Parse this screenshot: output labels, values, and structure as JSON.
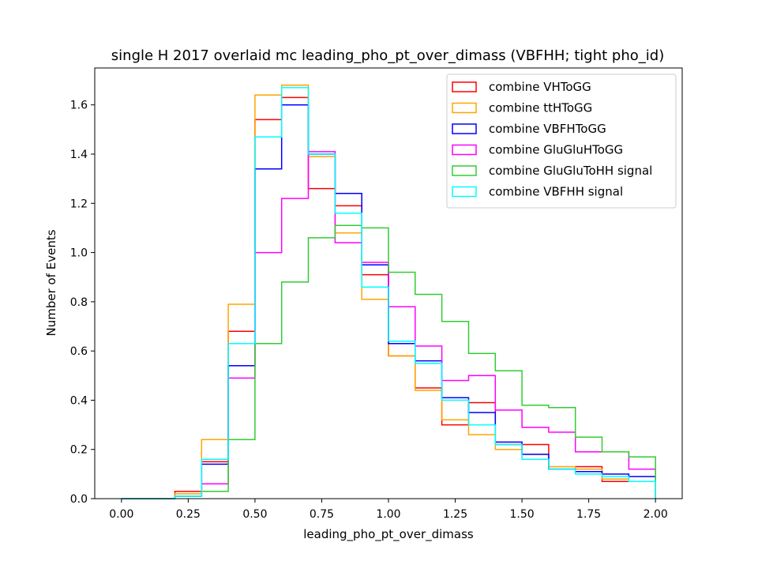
{
  "chart_data": {
    "type": "line",
    "step": "histogram",
    "title": "single H 2017 overlaid mc leading_pho_pt_over_dimass (VBFHH; tight pho_id)",
    "xlabel": "leading_pho_pt_over_dimass",
    "ylabel": "Number of Events",
    "xlim": [
      -0.1,
      2.1
    ],
    "ylim": [
      0,
      1.75
    ],
    "xticks": [
      0.0,
      0.25,
      0.5,
      0.75,
      1.0,
      1.25,
      1.5,
      1.75,
      2.0
    ],
    "xtick_labels": [
      "0.00",
      "0.25",
      "0.50",
      "0.75",
      "1.00",
      "1.25",
      "1.50",
      "1.75",
      "2.00"
    ],
    "yticks": [
      0.0,
      0.2,
      0.4,
      0.6,
      0.8,
      1.0,
      1.2,
      1.4,
      1.6
    ],
    "ytick_labels": [
      "0.0",
      "0.2",
      "0.4",
      "0.6",
      "0.8",
      "1.0",
      "1.2",
      "1.4",
      "1.6"
    ],
    "grid": false,
    "legend_position": "top-right",
    "bin_edges": [
      0.0,
      0.1,
      0.2,
      0.3,
      0.4,
      0.5,
      0.6,
      0.7,
      0.8,
      0.9,
      1.0,
      1.1,
      1.2,
      1.3,
      1.4,
      1.5,
      1.6,
      1.7,
      1.8,
      1.9,
      2.0
    ],
    "series": [
      {
        "name": "combine VHToGG",
        "color": "#ff0000",
        "values": [
          0.0,
          0.0,
          0.03,
          0.15,
          0.68,
          1.54,
          1.63,
          1.26,
          1.19,
          0.91,
          0.58,
          0.45,
          0.3,
          0.39,
          0.22,
          0.22,
          0.12,
          0.13,
          0.07,
          0.07
        ]
      },
      {
        "name": "combine ttHToGG",
        "color": "#ffa500",
        "values": [
          0.0,
          0.0,
          0.02,
          0.24,
          0.79,
          1.64,
          1.68,
          1.39,
          1.08,
          0.81,
          0.58,
          0.44,
          0.32,
          0.26,
          0.2,
          0.18,
          0.13,
          0.12,
          0.08,
          0.07
        ]
      },
      {
        "name": "combine VBFHToGG",
        "color": "#0000ff",
        "values": [
          0.0,
          0.0,
          0.01,
          0.14,
          0.54,
          1.34,
          1.6,
          1.4,
          1.24,
          0.95,
          0.63,
          0.56,
          0.41,
          0.35,
          0.23,
          0.18,
          0.12,
          0.11,
          0.1,
          0.09
        ]
      },
      {
        "name": "combine GluGluHToGG",
        "color": "#ff00ff",
        "values": [
          0.0,
          0.0,
          0.01,
          0.06,
          0.49,
          1.0,
          1.22,
          1.41,
          1.04,
          0.96,
          0.78,
          0.62,
          0.48,
          0.5,
          0.36,
          0.29,
          0.27,
          0.19,
          0.19,
          0.12
        ]
      },
      {
        "name": "combine GluGluToHH signal",
        "color": "#33cc33",
        "values": [
          0.0,
          0.0,
          0.01,
          0.03,
          0.24,
          0.63,
          0.88,
          1.06,
          1.11,
          1.1,
          0.92,
          0.83,
          0.72,
          0.59,
          0.52,
          0.38,
          0.37,
          0.25,
          0.19,
          0.17
        ]
      },
      {
        "name": "combine VBFHH signal",
        "color": "#00ffff",
        "values": [
          0.0,
          0.0,
          0.01,
          0.16,
          0.63,
          1.47,
          1.67,
          1.4,
          1.16,
          0.86,
          0.64,
          0.55,
          0.4,
          0.3,
          0.22,
          0.16,
          0.12,
          0.1,
          0.09,
          0.07
        ]
      }
    ]
  }
}
